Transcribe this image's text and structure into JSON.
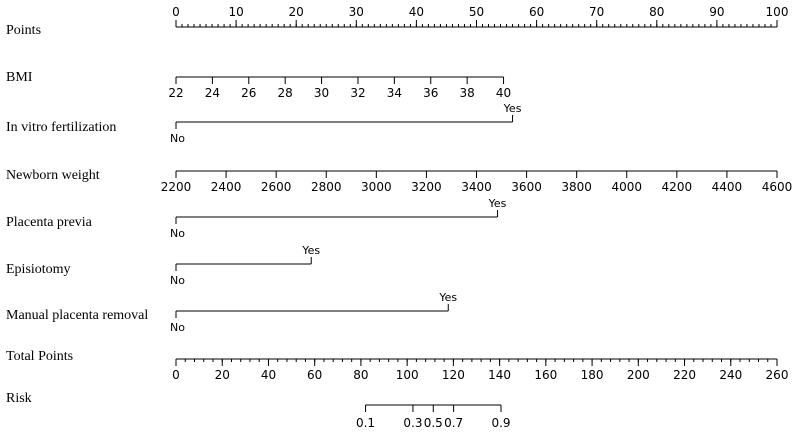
{
  "chart_data": {
    "type": "nomogram",
    "title": "",
    "rows": [
      {
        "id": "points",
        "label": "Points",
        "kind": "axis",
        "range": [
          0,
          100
        ],
        "ticks": [
          0,
          10,
          20,
          30,
          40,
          50,
          60,
          70,
          80,
          90,
          100
        ],
        "minor_step": 1,
        "labels_above": true
      },
      {
        "id": "bmi",
        "label": "BMI",
        "kind": "axis",
        "range": [
          22,
          40
        ],
        "ticks": [
          22,
          24,
          26,
          28,
          30,
          32,
          34,
          36,
          38,
          40
        ],
        "points_range": [
          0,
          54.5
        ]
      },
      {
        "id": "ivf",
        "label": "In vitro fertilization",
        "kind": "binary",
        "levels": [
          {
            "label": "No",
            "points": 0
          },
          {
            "label": "Yes",
            "points": 56
          }
        ]
      },
      {
        "id": "newborn_weight",
        "label": "Newborn weight",
        "kind": "axis",
        "range": [
          2200,
          4600
        ],
        "ticks": [
          2200,
          2400,
          2600,
          2800,
          3000,
          3200,
          3400,
          3600,
          3800,
          4000,
          4200,
          4400,
          4600
        ],
        "points_range": [
          0,
          100
        ]
      },
      {
        "id": "placenta_previa",
        "label": "Placenta previa",
        "kind": "binary",
        "levels": [
          {
            "label": "No",
            "points": 0
          },
          {
            "label": "Yes",
            "points": 53.5
          }
        ]
      },
      {
        "id": "episiotomy",
        "label": "Episiotomy",
        "kind": "binary",
        "levels": [
          {
            "label": "No",
            "points": 0
          },
          {
            "label": "Yes",
            "points": 22.5
          }
        ]
      },
      {
        "id": "manual_placenta_removal",
        "label": "Manual placenta removal",
        "kind": "binary",
        "levels": [
          {
            "label": "No",
            "points": 0
          },
          {
            "label": "Yes",
            "points": 45.3
          }
        ]
      },
      {
        "id": "total_points",
        "label": "Total Points",
        "kind": "axis",
        "range": [
          0,
          260
        ],
        "ticks": [
          0,
          20,
          40,
          60,
          80,
          100,
          120,
          140,
          160,
          180,
          200,
          220,
          240,
          260
        ],
        "minor_step": 4
      },
      {
        "id": "risk",
        "label": "Risk",
        "kind": "risk",
        "tick_values": [
          "0.1",
          "0.3",
          "0.5",
          "0.7",
          "0.9"
        ],
        "total_points_at_tick": [
          82.0,
          102.5,
          111.3,
          120.1,
          140.6
        ]
      }
    ]
  }
}
